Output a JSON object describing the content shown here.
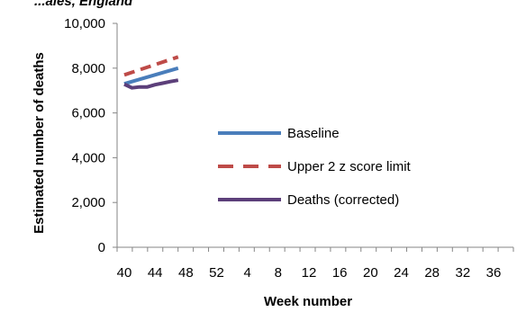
{
  "chart_data": {
    "type": "line",
    "title_fragment": "...ales, England",
    "xlabel": "Week number",
    "ylabel": "Estimated number of deaths",
    "x_tick_labels": [
      "40",
      "44",
      "48",
      "52",
      "4",
      "8",
      "12",
      "16",
      "20",
      "24",
      "28",
      "32",
      "36"
    ],
    "y_ticks": [
      0,
      2000,
      4000,
      6000,
      8000,
      10000
    ],
    "y_tick_labels": [
      "0",
      "2,000",
      "4,000",
      "6,000",
      "8,000",
      "10,000"
    ],
    "ylim": [
      0,
      10000
    ],
    "grid": false,
    "legend_position": "center-right",
    "series": [
      {
        "name": "Baseline",
        "color": "#4a7ebb",
        "dash": "solid",
        "x": [
          40,
          47
        ],
        "values": [
          7300,
          8000
        ]
      },
      {
        "name": "Upper 2 z score limit",
        "color": "#be4b48",
        "dash": "dashed",
        "x": [
          40,
          47
        ],
        "values": [
          7700,
          8500
        ]
      },
      {
        "name": "Deaths (corrected)",
        "color": "#5c3f7a",
        "dash": "solid",
        "x": [
          40,
          41,
          42,
          43,
          44,
          45,
          46,
          47
        ],
        "values": [
          7280,
          7120,
          7160,
          7160,
          7260,
          7330,
          7400,
          7460
        ]
      }
    ]
  }
}
